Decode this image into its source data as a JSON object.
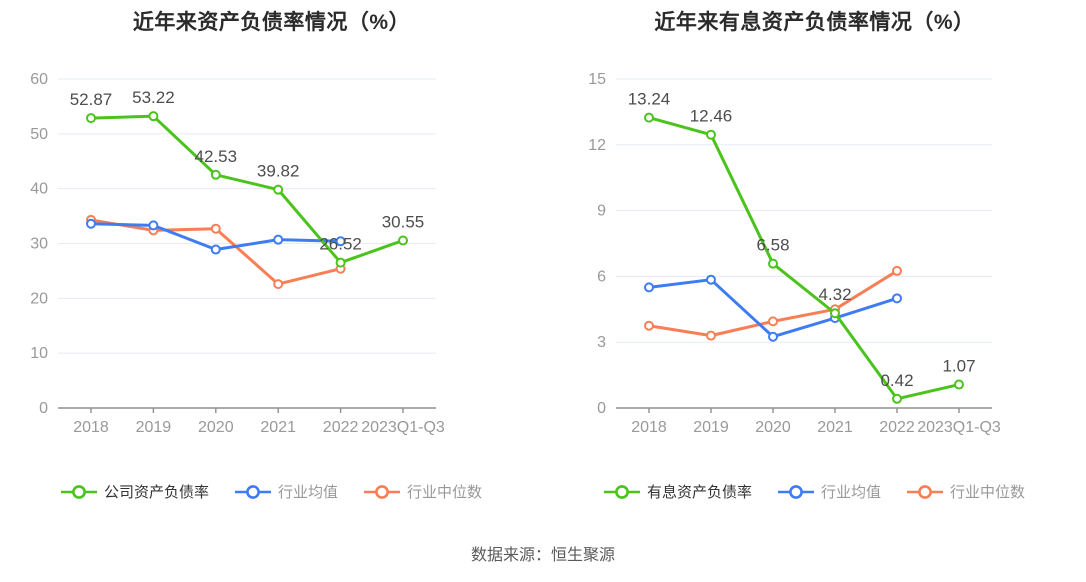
{
  "footer": {
    "source": "数据来源：恒生聚源"
  },
  "colors": {
    "company_green": "#4bc31d",
    "industry_avg_blue": "#3f7cf2",
    "industry_median_orange": "#f87e55",
    "grid_line": "#e6ebf5",
    "axis_line": "#8f8f8f",
    "tick_label": "#999999",
    "data_label": "#4d4d4d",
    "active_legend_text": "#333333",
    "inactive_legend_text": "#999999"
  },
  "chart_data": [
    {
      "type": "line",
      "title": "近年来资产负债率情况（%）",
      "categories": [
        "2018",
        "2019",
        "2020",
        "2021",
        "2022",
        "2023Q1-Q3"
      ],
      "series": [
        {
          "name": "公司资产负债率",
          "color": "#4bc31d",
          "legend_text_color": "#333333",
          "show_data_labels": true,
          "values": [
            52.87,
            53.22,
            42.53,
            39.82,
            26.52,
            30.55
          ]
        },
        {
          "name": "行业均值",
          "color": "#3f7cf2",
          "legend_text_color": "#999999",
          "show_data_labels": false,
          "values": [
            33.6,
            33.3,
            28.9,
            30.7,
            30.4,
            null
          ]
        },
        {
          "name": "行业中位数",
          "color": "#f87e55",
          "legend_text_color": "#999999",
          "show_data_labels": false,
          "values": [
            34.3,
            32.4,
            32.7,
            22.6,
            25.4,
            null
          ]
        }
      ],
      "ylim": [
        0,
        60
      ],
      "yticks": [
        0,
        10,
        20,
        30,
        40,
        50,
        60
      ],
      "grid": true,
      "legend_position": "bottom"
    },
    {
      "type": "line",
      "title": "近年来有息资产负债率情况（%）",
      "categories": [
        "2018",
        "2019",
        "2020",
        "2021",
        "2022",
        "2023Q1-Q3"
      ],
      "series": [
        {
          "name": "有息资产负债率",
          "color": "#4bc31d",
          "legend_text_color": "#333333",
          "show_data_labels": true,
          "values": [
            13.24,
            12.46,
            6.58,
            4.32,
            0.42,
            1.07
          ]
        },
        {
          "name": "行业均值",
          "color": "#3f7cf2",
          "legend_text_color": "#999999",
          "show_data_labels": false,
          "values": [
            5.5,
            5.85,
            3.25,
            4.1,
            5.0,
            null
          ]
        },
        {
          "name": "行业中位数",
          "color": "#f87e55",
          "legend_text_color": "#999999",
          "show_data_labels": false,
          "values": [
            3.75,
            3.3,
            3.95,
            4.5,
            6.25,
            null
          ]
        }
      ],
      "ylim": [
        0,
        15
      ],
      "yticks": [
        0,
        3,
        6,
        9,
        12,
        15
      ],
      "grid": true,
      "legend_position": "bottom"
    }
  ]
}
